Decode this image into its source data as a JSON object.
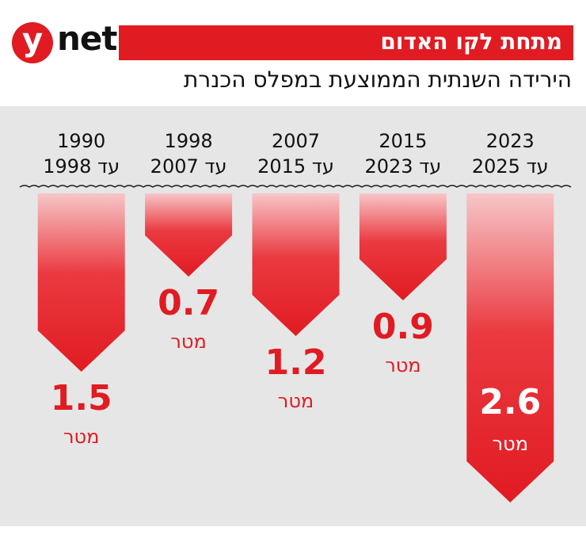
{
  "brand": {
    "logo_letter": "y",
    "logo_word": "net"
  },
  "header": {
    "title": "מתחת לקו האדום",
    "subtitle": "הירידה השנתית הממוצעת במפלס הכנרת"
  },
  "colors": {
    "accent": "#e11b22",
    "panel": "#e6e6e6",
    "text": "#111111"
  },
  "chart_data": {
    "type": "bar",
    "orientation": "downward",
    "categories": [
      {
        "line1": "1990",
        "line2": "עד 1998"
      },
      {
        "line1": "1998",
        "line2": "עד 2007"
      },
      {
        "line1": "2007",
        "line2": "עד 2015"
      },
      {
        "line1": "2015",
        "line2": "עד 2023"
      },
      {
        "line1": "2023",
        "line2": "עד 2025"
      }
    ],
    "values": [
      1.5,
      0.7,
      1.2,
      0.9,
      2.6
    ],
    "value_labels": [
      "1.5",
      "0.7",
      "1.2",
      "0.9",
      "2.6"
    ],
    "unit": "מטר",
    "ylim": [
      0,
      2.6
    ]
  }
}
